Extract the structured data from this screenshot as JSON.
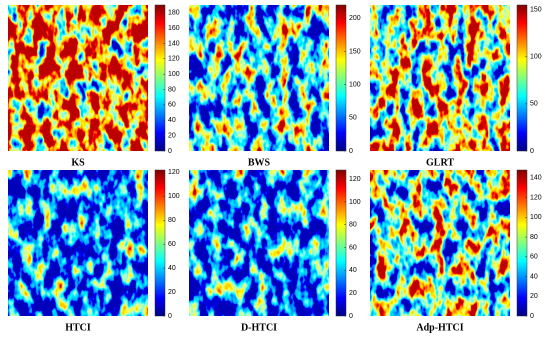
{
  "panels": [
    {
      "title": "KS",
      "clim": [
        0,
        190
      ],
      "ticks": [
        0,
        20,
        40,
        60,
        80,
        100,
        120,
        140,
        160,
        180
      ]
    },
    {
      "title": "BWS",
      "clim": [
        0,
        220
      ],
      "ticks": [
        0,
        50,
        100,
        150,
        200
      ]
    },
    {
      "title": "GLRT",
      "clim": [
        0,
        155
      ],
      "ticks": [
        0,
        50,
        100,
        150
      ]
    },
    {
      "title": "HTCI",
      "clim": [
        0,
        122
      ],
      "ticks": [
        0,
        20,
        40,
        60,
        80,
        100,
        120
      ]
    },
    {
      "title": "D-HTCI",
      "clim": [
        0,
        128
      ],
      "ticks": [
        0,
        20,
        40,
        60,
        80,
        100,
        120
      ]
    },
    {
      "title": "Adp-HTCI",
      "clim": [
        0,
        148
      ],
      "ticks": [
        0,
        20,
        40,
        60,
        80,
        100,
        120,
        140
      ]
    }
  ]
}
